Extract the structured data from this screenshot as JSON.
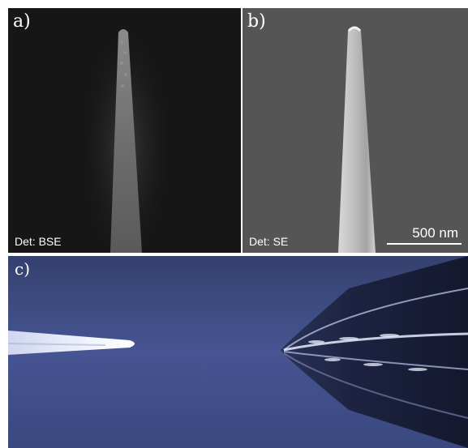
{
  "panels": {
    "a": {
      "label": "a)",
      "detector": "Det: BSE"
    },
    "b": {
      "label": "b)",
      "detector": "Det: SE",
      "scale_bar": "500 nm"
    },
    "c": {
      "label": "c)"
    }
  },
  "colors": {
    "bse_background": "#161616",
    "se_background": "#555555",
    "optical_background": "#3c4a7a"
  }
}
